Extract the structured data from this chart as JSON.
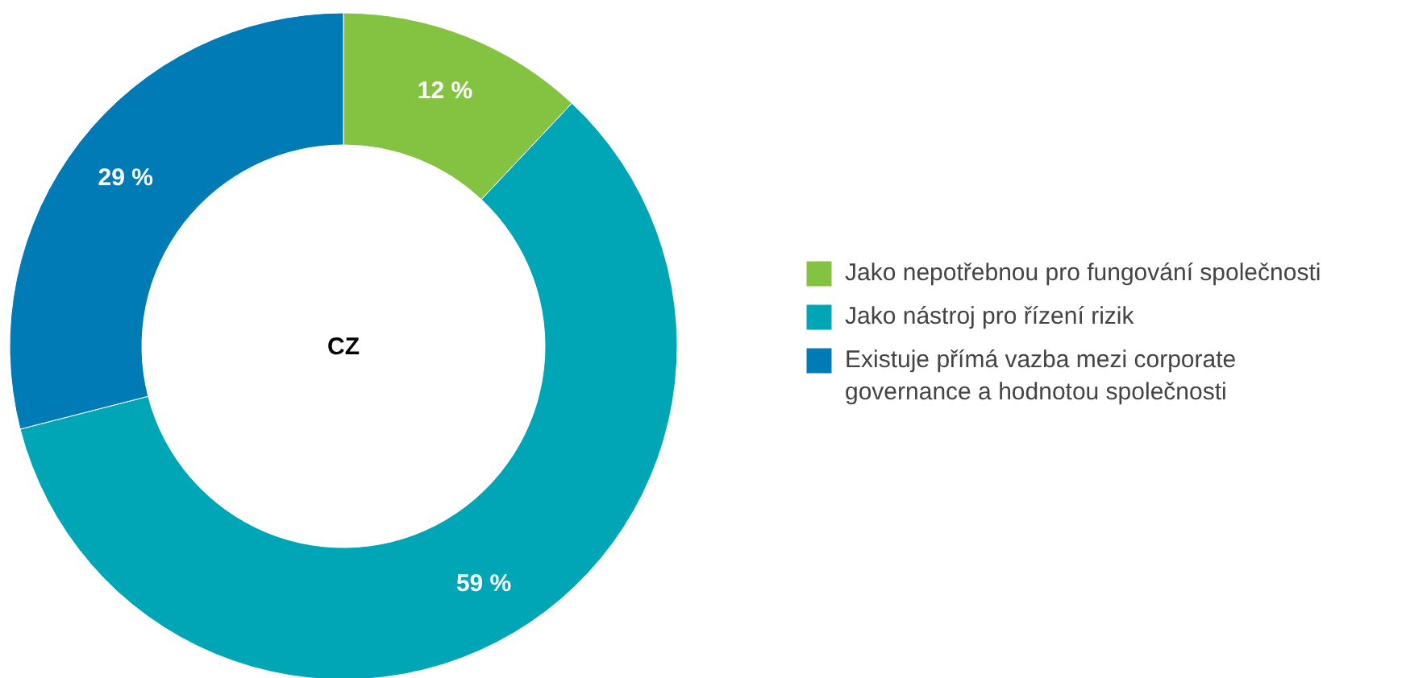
{
  "chart_data": {
    "type": "donut",
    "title": "CZ",
    "categories": [
      "Jako nepotřebnou pro fungování společnosti",
      "Jako nástroj pro řízení rizik",
      "Existuje přímá vazba mezi corporate governance a hodnotou společnosti"
    ],
    "values": [
      12,
      59,
      29
    ],
    "colors": [
      "#84c341",
      "#00a6b6",
      "#007bb6"
    ],
    "value_labels": [
      "12 %",
      "59 %",
      "29 %"
    ],
    "legend": "right"
  }
}
